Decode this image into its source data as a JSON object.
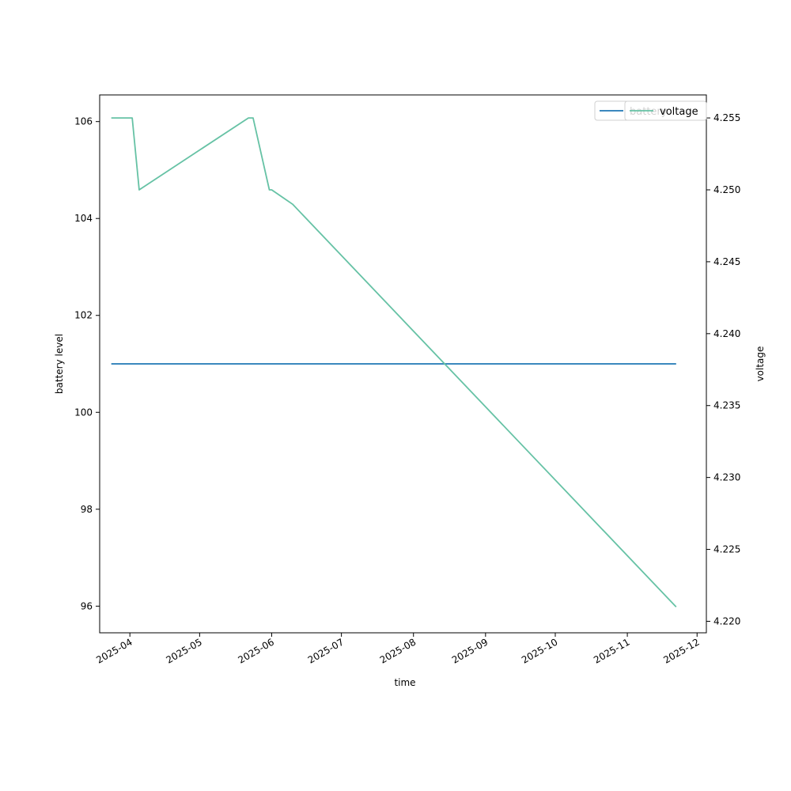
{
  "chart_data": {
    "type": "line",
    "xlabel": "time",
    "ylabel_left": "battery level",
    "ylabel_right": "voltage",
    "x_ticks": [
      "2025-04",
      "2025-05",
      "2025-06",
      "2025-07",
      "2025-08",
      "2025-09",
      "2025-10",
      "2025-11",
      "2025-12"
    ],
    "xlim": [
      "2025-03-19",
      "2025-12-05"
    ],
    "y_left_ticks": [
      "96",
      "98",
      "100",
      "102",
      "104",
      "106"
    ],
    "y_left_lim": [
      95.45,
      106.55
    ],
    "y_right_ticks": [
      "4.220",
      "4.225",
      "4.230",
      "4.235",
      "4.240",
      "4.245",
      "4.250",
      "4.255"
    ],
    "y_right_lim": [
      4.2192,
      4.2566
    ],
    "series": [
      {
        "name": "battery",
        "axis": "left",
        "color": "#1f77b4",
        "x": [
          "2025-03-24",
          "2025-11-22"
        ],
        "y": [
          101,
          101
        ]
      },
      {
        "name": "voltage",
        "axis": "right",
        "color": "#66c2a5",
        "x": [
          "2025-03-24",
          "2025-04-02",
          "2025-04-05",
          "2025-05-22",
          "2025-05-24",
          "2025-05-31",
          "2025-06-01",
          "2025-06-10",
          "2025-11-22"
        ],
        "y": [
          4.255,
          4.255,
          4.25,
          4.255,
          4.255,
          4.25,
          4.25,
          4.249,
          4.221
        ]
      }
    ],
    "legends": [
      {
        "placement": "upper-right",
        "entries": [
          "battery"
        ]
      },
      {
        "placement": "upper-right",
        "entries": [
          "voltage"
        ]
      }
    ]
  }
}
